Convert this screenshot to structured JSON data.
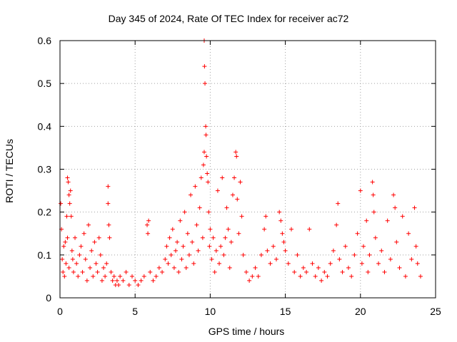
{
  "chart_data": {
    "type": "scatter",
    "title": "Day 345 of 2024, Rate Of TEC Index for receiver ac72",
    "xlabel": "GPS time / hours",
    "ylabel": "ROTI / TECUs",
    "xlim": [
      0,
      25
    ],
    "ylim": [
      0,
      0.6
    ],
    "xticks": [
      0,
      5,
      10,
      15,
      20,
      25
    ],
    "yticks": [
      0,
      0.1,
      0.2,
      0.3,
      0.4,
      0.5,
      0.6
    ],
    "xtick_labels": [
      "0",
      "5",
      "10",
      "15",
      "20",
      "25"
    ],
    "ytick_labels": [
      "0",
      "0.1",
      "0.2",
      "0.3",
      "0.4",
      "0.5",
      "0.6"
    ],
    "grid": true,
    "marker": "+",
    "color": "#ff0000",
    "series": [
      {
        "name": "ROTI",
        "points": [
          [
            0.05,
            0.22
          ],
          [
            0.1,
            0.16
          ],
          [
            0.15,
            0.09
          ],
          [
            0.2,
            0.06
          ],
          [
            0.25,
            0.12
          ],
          [
            0.3,
            0.05
          ],
          [
            0.35,
            0.13
          ],
          [
            0.4,
            0.08
          ],
          [
            0.45,
            0.19
          ],
          [
            0.5,
            0.14
          ],
          [
            0.5,
            0.28
          ],
          [
            0.55,
            0.27
          ],
          [
            0.6,
            0.24
          ],
          [
            0.6,
            0.07
          ],
          [
            0.65,
            0.22
          ],
          [
            0.7,
            0.25
          ],
          [
            0.75,
            0.19
          ],
          [
            0.8,
            0.11
          ],
          [
            0.85,
            0.09
          ],
          [
            0.9,
            0.06
          ],
          [
            1.0,
            0.14
          ],
          [
            1.1,
            0.08
          ],
          [
            1.2,
            0.05
          ],
          [
            1.3,
            0.1
          ],
          [
            1.4,
            0.12
          ],
          [
            1.5,
            0.06
          ],
          [
            1.6,
            0.15
          ],
          [
            1.7,
            0.09
          ],
          [
            1.8,
            0.04
          ],
          [
            1.9,
            0.17
          ],
          [
            2.0,
            0.07
          ],
          [
            2.1,
            0.11
          ],
          [
            2.2,
            0.05
          ],
          [
            2.3,
            0.13
          ],
          [
            2.4,
            0.08
          ],
          [
            2.5,
            0.06
          ],
          [
            2.6,
            0.14
          ],
          [
            2.7,
            0.1
          ],
          [
            2.8,
            0.04
          ],
          [
            2.9,
            0.07
          ],
          [
            3.0,
            0.05
          ],
          [
            3.1,
            0.08
          ],
          [
            3.2,
            0.26
          ],
          [
            3.2,
            0.22
          ],
          [
            3.25,
            0.17
          ],
          [
            3.3,
            0.14
          ],
          [
            3.4,
            0.06
          ],
          [
            3.5,
            0.04
          ],
          [
            3.6,
            0.05
          ],
          [
            3.7,
            0.03
          ],
          [
            3.8,
            0.04
          ],
          [
            3.9,
            0.03
          ],
          [
            4.0,
            0.05
          ],
          [
            4.2,
            0.04
          ],
          [
            4.4,
            0.06
          ],
          [
            4.6,
            0.03
          ],
          [
            4.8,
            0.05
          ],
          [
            5.0,
            0.04
          ],
          [
            5.2,
            0.03
          ],
          [
            5.4,
            0.04
          ],
          [
            5.6,
            0.05
          ],
          [
            5.8,
            0.17
          ],
          [
            5.85,
            0.15
          ],
          [
            5.9,
            0.18
          ],
          [
            6.0,
            0.06
          ],
          [
            6.2,
            0.04
          ],
          [
            6.4,
            0.05
          ],
          [
            6.6,
            0.07
          ],
          [
            6.8,
            0.06
          ],
          [
            7.0,
            0.09
          ],
          [
            7.1,
            0.12
          ],
          [
            7.2,
            0.08
          ],
          [
            7.3,
            0.14
          ],
          [
            7.4,
            0.1
          ],
          [
            7.5,
            0.16
          ],
          [
            7.6,
            0.07
          ],
          [
            7.7,
            0.11
          ],
          [
            7.8,
            0.13
          ],
          [
            7.9,
            0.06
          ],
          [
            8.0,
            0.18
          ],
          [
            8.1,
            0.09
          ],
          [
            8.2,
            0.12
          ],
          [
            8.3,
            0.2
          ],
          [
            8.4,
            0.07
          ],
          [
            8.5,
            0.15
          ],
          [
            8.6,
            0.1
          ],
          [
            8.7,
            0.24
          ],
          [
            8.8,
            0.13
          ],
          [
            8.9,
            0.08
          ],
          [
            9.0,
            0.26
          ],
          [
            9.1,
            0.17
          ],
          [
            9.2,
            0.11
          ],
          [
            9.3,
            0.21
          ],
          [
            9.4,
            0.28
          ],
          [
            9.5,
            0.14
          ],
          [
            9.55,
            0.31
          ],
          [
            9.6,
            0.34
          ],
          [
            9.6,
            0.6
          ],
          [
            9.62,
            0.54
          ],
          [
            9.65,
            0.5
          ],
          [
            9.7,
            0.4
          ],
          [
            9.72,
            0.38
          ],
          [
            9.75,
            0.33
          ],
          [
            9.8,
            0.29
          ],
          [
            9.85,
            0.27
          ],
          [
            9.9,
            0.2
          ],
          [
            9.95,
            0.12
          ],
          [
            10.0,
            0.16
          ],
          [
            10.1,
            0.09
          ],
          [
            10.2,
            0.14
          ],
          [
            10.3,
            0.06
          ],
          [
            10.4,
            0.11
          ],
          [
            10.5,
            0.25
          ],
          [
            10.6,
            0.08
          ],
          [
            10.7,
            0.12
          ],
          [
            10.8,
            0.28
          ],
          [
            10.9,
            0.1
          ],
          [
            11.0,
            0.14
          ],
          [
            11.1,
            0.21
          ],
          [
            11.2,
            0.16
          ],
          [
            11.3,
            0.07
          ],
          [
            11.4,
            0.13
          ],
          [
            11.5,
            0.24
          ],
          [
            11.6,
            0.28
          ],
          [
            11.7,
            0.34
          ],
          [
            11.75,
            0.33
          ],
          [
            11.8,
            0.23
          ],
          [
            11.9,
            0.15
          ],
          [
            12.0,
            0.27
          ],
          [
            12.1,
            0.19
          ],
          [
            12.2,
            0.1
          ],
          [
            12.4,
            0.06
          ],
          [
            12.6,
            0.04
          ],
          [
            12.8,
            0.05
          ],
          [
            13.0,
            0.07
          ],
          [
            13.2,
            0.05
          ],
          [
            13.4,
            0.1
          ],
          [
            13.6,
            0.16
          ],
          [
            13.7,
            0.19
          ],
          [
            13.8,
            0.11
          ],
          [
            14.0,
            0.08
          ],
          [
            14.2,
            0.12
          ],
          [
            14.4,
            0.09
          ],
          [
            14.6,
            0.2
          ],
          [
            14.7,
            0.18
          ],
          [
            14.8,
            0.15
          ],
          [
            14.9,
            0.13
          ],
          [
            15.0,
            0.11
          ],
          [
            15.2,
            0.08
          ],
          [
            15.4,
            0.16
          ],
          [
            15.6,
            0.06
          ],
          [
            15.8,
            0.1
          ],
          [
            16.0,
            0.05
          ],
          [
            16.2,
            0.07
          ],
          [
            16.4,
            0.06
          ],
          [
            16.6,
            0.16
          ],
          [
            16.8,
            0.08
          ],
          [
            17.0,
            0.05
          ],
          [
            17.2,
            0.07
          ],
          [
            17.4,
            0.04
          ],
          [
            17.6,
            0.06
          ],
          [
            17.8,
            0.05
          ],
          [
            18.0,
            0.08
          ],
          [
            18.2,
            0.11
          ],
          [
            18.4,
            0.17
          ],
          [
            18.5,
            0.22
          ],
          [
            18.6,
            0.09
          ],
          [
            18.8,
            0.06
          ],
          [
            19.0,
            0.12
          ],
          [
            19.2,
            0.07
          ],
          [
            19.4,
            0.05
          ],
          [
            19.6,
            0.1
          ],
          [
            19.8,
            0.15
          ],
          [
            20.0,
            0.25
          ],
          [
            20.1,
            0.08
          ],
          [
            20.2,
            0.12
          ],
          [
            20.4,
            0.18
          ],
          [
            20.5,
            0.06
          ],
          [
            20.6,
            0.1
          ],
          [
            20.8,
            0.27
          ],
          [
            20.85,
            0.24
          ],
          [
            20.9,
            0.2
          ],
          [
            21.0,
            0.14
          ],
          [
            21.2,
            0.08
          ],
          [
            21.4,
            0.11
          ],
          [
            21.6,
            0.06
          ],
          [
            21.8,
            0.18
          ],
          [
            22.0,
            0.09
          ],
          [
            22.2,
            0.24
          ],
          [
            22.3,
            0.21
          ],
          [
            22.4,
            0.13
          ],
          [
            22.6,
            0.07
          ],
          [
            22.8,
            0.19
          ],
          [
            23.0,
            0.05
          ],
          [
            23.2,
            0.15
          ],
          [
            23.4,
            0.09
          ],
          [
            23.6,
            0.21
          ],
          [
            23.7,
            0.12
          ],
          [
            23.8,
            0.08
          ],
          [
            24.0,
            0.05
          ]
        ]
      }
    ]
  }
}
